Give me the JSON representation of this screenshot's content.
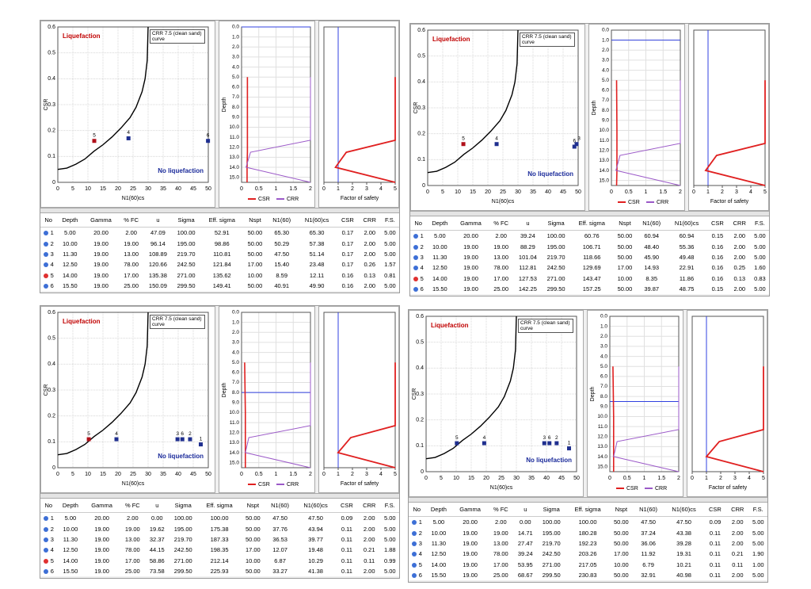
{
  "csr_axes": {
    "xlabel": "N1(60)cs",
    "ylabel": "CSR",
    "xlim": [
      0,
      50
    ],
    "xticks": [
      0,
      5,
      10,
      15,
      20,
      25,
      30,
      35,
      40,
      45,
      50
    ],
    "ylim": [
      0,
      0.6
    ],
    "yticks": [
      0,
      0.1,
      0.2,
      0.3,
      0.4,
      0.5,
      0.6
    ],
    "liquefaction": "Liquefaction",
    "no_liquefaction": "No liquefaction",
    "curve_legend": "CRR 7.5 (clean sand) curve",
    "curve_color": "#000000",
    "curve": {
      "x": [
        0,
        3,
        6,
        9,
        12,
        15,
        18,
        21,
        24,
        26,
        28,
        29,
        29.7,
        30
      ],
      "y": [
        0.05,
        0.055,
        0.07,
        0.09,
        0.12,
        0.145,
        0.175,
        0.21,
        0.25,
        0.29,
        0.35,
        0.4,
        0.47,
        0.6
      ]
    }
  },
  "depth_axes": {
    "ylabel": "Depth",
    "ylim": [
      0,
      15.5
    ],
    "yticks": [
      {
        "value": 0,
        "label": "0.0"
      },
      {
        "value": 1,
        "label": "1.0"
      },
      {
        "value": 2,
        "label": "2.0"
      },
      {
        "value": 3,
        "label": "3.0"
      },
      {
        "value": 4,
        "label": "4.0"
      },
      {
        "value": 5,
        "label": "5.0"
      },
      {
        "value": 6,
        "label": "6.0"
      },
      {
        "value": 7,
        "label": "7.0"
      },
      {
        "value": 8,
        "label": "8.0"
      },
      {
        "value": 9,
        "label": "9.0"
      },
      {
        "value": 10,
        "label": "10.0"
      },
      {
        "value": 11,
        "label": "11.0"
      },
      {
        "value": 12,
        "label": "12.0"
      },
      {
        "value": 13,
        "label": "13.0"
      },
      {
        "value": 14,
        "label": "14.0"
      },
      {
        "value": 15,
        "label": "15.0"
      }
    ],
    "xlim": [
      0,
      2
    ],
    "xticks": [
      0,
      0.5,
      1,
      1.5,
      2
    ],
    "series": [
      {
        "name": "CSR",
        "color": "#e02020"
      },
      {
        "name": "CRR",
        "color": "#9b59c8"
      }
    ],
    "water_color": "#3040e0"
  },
  "fs_axes": {
    "xlabel": "Factor of safety",
    "xlim": [
      0,
      5
    ],
    "xticks": [
      0,
      1,
      2,
      3,
      4,
      5
    ],
    "limit": 1,
    "limit_color": "#3040e0",
    "line_color": "#e02020"
  },
  "table_columns": [
    "No",
    "Depth",
    "Gamma",
    "% FC",
    "u",
    "Sigma",
    "Eff. sigma",
    "Nspt",
    "N1(60)",
    "N1(60)cs",
    "CSR",
    "CRR",
    "F.S."
  ],
  "panels": [
    {
      "points": {
        "labels": [
          "5",
          "4",
          "6"
        ],
        "x": [
          12.11,
          23.48,
          49.9
        ],
        "y": [
          0.16,
          0.17,
          0.16
        ],
        "colors": [
          "#b0101a",
          "#1f2f8f",
          "#1f2f8f"
        ]
      },
      "profile": {
        "depths": [
          5,
          10,
          11.3,
          12.5,
          14,
          15.5
        ],
        "csr": [
          0.17,
          0.17,
          0.17,
          0.17,
          0.16,
          0.16
        ],
        "crr": [
          2,
          2,
          2,
          0.26,
          0.13,
          2
        ],
        "fs": [
          5,
          5,
          5,
          1.57,
          0.81,
          5
        ],
        "water_table": 0
      },
      "row_dots": [
        "#3d6fd6",
        "#3d6fd6",
        "#3d6fd6",
        "#3d6fd6",
        "#e03030",
        "#3d6fd6"
      ],
      "table": [
        [
          "1",
          "5.00",
          "20.00",
          "2.00",
          "47.09",
          "100.00",
          "52.91",
          "50.00",
          "65.30",
          "65.30",
          "0.17",
          "2.00",
          "5.00"
        ],
        [
          "2",
          "10.00",
          "19.00",
          "19.00",
          "96.14",
          "195.00",
          "98.86",
          "50.00",
          "50.29",
          "57.38",
          "0.17",
          "2.00",
          "5.00"
        ],
        [
          "3",
          "11.30",
          "19.00",
          "13.00",
          "108.89",
          "219.70",
          "110.81",
          "50.00",
          "47.50",
          "51.14",
          "0.17",
          "2.00",
          "5.00"
        ],
        [
          "4",
          "12.50",
          "19.00",
          "78.00",
          "120.66",
          "242.50",
          "121.84",
          "17.00",
          "15.40",
          "23.48",
          "0.17",
          "0.26",
          "1.57"
        ],
        [
          "5",
          "14.00",
          "19.00",
          "17.00",
          "135.38",
          "271.00",
          "135.62",
          "10.00",
          "8.59",
          "12.11",
          "0.16",
          "0.13",
          "0.81"
        ],
        [
          "6",
          "15.50",
          "19.00",
          "25.00",
          "150.09",
          "299.50",
          "149.41",
          "50.00",
          "40.91",
          "49.90",
          "0.16",
          "2.00",
          "5.00"
        ]
      ]
    },
    {
      "points": {
        "labels": [
          "5",
          "4",
          "6",
          "3"
        ],
        "x": [
          11.86,
          22.91,
          48.75,
          49.48
        ],
        "y": [
          0.16,
          0.16,
          0.15,
          0.16
        ],
        "colors": [
          "#b0101a",
          "#1f2f8f",
          "#1f2f8f",
          "#1f2f8f"
        ]
      },
      "profile": {
        "depths": [
          5,
          10,
          11.3,
          12.5,
          14,
          15.5
        ],
        "csr": [
          0.15,
          0.16,
          0.16,
          0.16,
          0.16,
          0.15
        ],
        "crr": [
          2,
          2,
          2,
          0.25,
          0.13,
          2
        ],
        "fs": [
          5,
          5,
          5,
          1.6,
          0.83,
          5
        ],
        "water_table": 1
      },
      "row_dots": [
        "#3d6fd6",
        "#3d6fd6",
        "#3d6fd6",
        "#3d6fd6",
        "#e03030",
        "#3d6fd6"
      ],
      "table": [
        [
          "1",
          "5.00",
          "20.00",
          "2.00",
          "39.24",
          "100.00",
          "60.76",
          "50.00",
          "60.94",
          "60.94",
          "0.15",
          "2.00",
          "5.00"
        ],
        [
          "2",
          "10.00",
          "19.00",
          "19.00",
          "88.29",
          "195.00",
          "106.71",
          "50.00",
          "48.40",
          "55.36",
          "0.16",
          "2.00",
          "5.00"
        ],
        [
          "3",
          "11.30",
          "19.00",
          "13.00",
          "101.04",
          "219.70",
          "118.66",
          "50.00",
          "45.90",
          "49.48",
          "0.16",
          "2.00",
          "5.00"
        ],
        [
          "4",
          "12.50",
          "19.00",
          "78.00",
          "112.81",
          "242.50",
          "129.69",
          "17.00",
          "14.93",
          "22.91",
          "0.16",
          "0.25",
          "1.60"
        ],
        [
          "5",
          "14.00",
          "19.00",
          "17.00",
          "127.53",
          "271.00",
          "143.47",
          "10.00",
          "8.35",
          "11.86",
          "0.16",
          "0.13",
          "0.83"
        ],
        [
          "6",
          "15.50",
          "19.00",
          "25.00",
          "142.25",
          "299.50",
          "157.25",
          "50.00",
          "39.87",
          "48.75",
          "0.15",
          "2.00",
          "5.00"
        ]
      ]
    },
    {
      "points": {
        "labels": [
          "1",
          "2",
          "3",
          "4",
          "5",
          "6"
        ],
        "x": [
          47.5,
          43.94,
          39.77,
          19.48,
          10.29,
          41.38
        ],
        "y": [
          0.09,
          0.11,
          0.11,
          0.11,
          0.11,
          0.11
        ],
        "colors": [
          "#1f2f8f",
          "#1f2f8f",
          "#1f2f8f",
          "#1f2f8f",
          "#b0101a",
          "#1f2f8f"
        ]
      },
      "profile": {
        "depths": [
          5,
          10,
          11.3,
          12.5,
          14,
          15.5
        ],
        "csr": [
          0.09,
          0.11,
          0.11,
          0.11,
          0.11,
          0.11
        ],
        "crr": [
          2,
          2,
          2,
          0.21,
          0.11,
          2
        ],
        "fs": [
          5,
          5,
          5,
          1.88,
          0.99,
          5
        ],
        "water_table": 8
      },
      "row_dots": [
        "#3d6fd6",
        "#3d6fd6",
        "#3d6fd6",
        "#3d6fd6",
        "#e03030",
        "#3d6fd6"
      ],
      "table": [
        [
          "1",
          "5.00",
          "20.00",
          "2.00",
          "0.00",
          "100.00",
          "100.00",
          "50.00",
          "47.50",
          "47.50",
          "0.09",
          "2.00",
          "5.00"
        ],
        [
          "2",
          "10.00",
          "19.00",
          "19.00",
          "19.62",
          "195.00",
          "175.38",
          "50.00",
          "37.76",
          "43.94",
          "0.11",
          "2.00",
          "5.00"
        ],
        [
          "3",
          "11.30",
          "19.00",
          "13.00",
          "32.37",
          "219.70",
          "187.33",
          "50.00",
          "36.53",
          "39.77",
          "0.11",
          "2.00",
          "5.00"
        ],
        [
          "4",
          "12.50",
          "19.00",
          "78.00",
          "44.15",
          "242.50",
          "198.35",
          "17.00",
          "12.07",
          "19.48",
          "0.11",
          "0.21",
          "1.88"
        ],
        [
          "5",
          "14.00",
          "19.00",
          "17.00",
          "58.86",
          "271.00",
          "212.14",
          "10.00",
          "6.87",
          "10.29",
          "0.11",
          "0.11",
          "0.99"
        ],
        [
          "6",
          "15.50",
          "19.00",
          "25.00",
          "73.58",
          "299.50",
          "225.93",
          "50.00",
          "33.27",
          "41.38",
          "0.11",
          "2.00",
          "5.00"
        ]
      ]
    },
    {
      "points": {
        "labels": [
          "1",
          "2",
          "3",
          "4",
          "5",
          "6"
        ],
        "x": [
          47.5,
          43.38,
          39.28,
          19.31,
          10.21,
          40.98
        ],
        "y": [
          0.09,
          0.11,
          0.11,
          0.11,
          0.11,
          0.11
        ],
        "colors": [
          "#1f2f8f",
          "#1f2f8f",
          "#1f2f8f",
          "#1f2f8f",
          "#1f2f8f",
          "#1f2f8f"
        ]
      },
      "profile": {
        "depths": [
          5,
          10,
          11.3,
          12.5,
          14,
          15.5
        ],
        "csr": [
          0.09,
          0.11,
          0.11,
          0.11,
          0.11,
          0.11
        ],
        "crr": [
          2,
          2,
          2,
          0.21,
          0.11,
          2
        ],
        "fs": [
          5,
          5,
          5,
          1.9,
          1,
          5
        ],
        "water_table": 8.5
      },
      "row_dots": [
        "#3d6fd6",
        "#3d6fd6",
        "#3d6fd6",
        "#3d6fd6",
        "#3d6fd6",
        "#3d6fd6"
      ],
      "table": [
        [
          "1",
          "5.00",
          "20.00",
          "2.00",
          "0.00",
          "100.00",
          "100.00",
          "50.00",
          "47.50",
          "47.50",
          "0.09",
          "2.00",
          "5.00"
        ],
        [
          "2",
          "10.00",
          "19.00",
          "19.00",
          "14.71",
          "195.00",
          "180.28",
          "50.00",
          "37.24",
          "43.38",
          "0.11",
          "2.00",
          "5.00"
        ],
        [
          "3",
          "11.30",
          "19.00",
          "13.00",
          "27.47",
          "219.70",
          "192.23",
          "50.00",
          "36.06",
          "39.28",
          "0.11",
          "2.00",
          "5.00"
        ],
        [
          "4",
          "12.50",
          "19.00",
          "78.00",
          "39.24",
          "242.50",
          "203.26",
          "17.00",
          "11.92",
          "19.31",
          "0.11",
          "0.21",
          "1.90"
        ],
        [
          "5",
          "14.00",
          "19.00",
          "17.00",
          "53.95",
          "271.00",
          "217.05",
          "10.00",
          "6.79",
          "10.21",
          "0.11",
          "0.11",
          "1.00"
        ],
        [
          "6",
          "15.50",
          "19.00",
          "25.00",
          "68.67",
          "299.50",
          "230.83",
          "50.00",
          "32.91",
          "40.98",
          "0.11",
          "2.00",
          "5.00"
        ]
      ]
    }
  ]
}
